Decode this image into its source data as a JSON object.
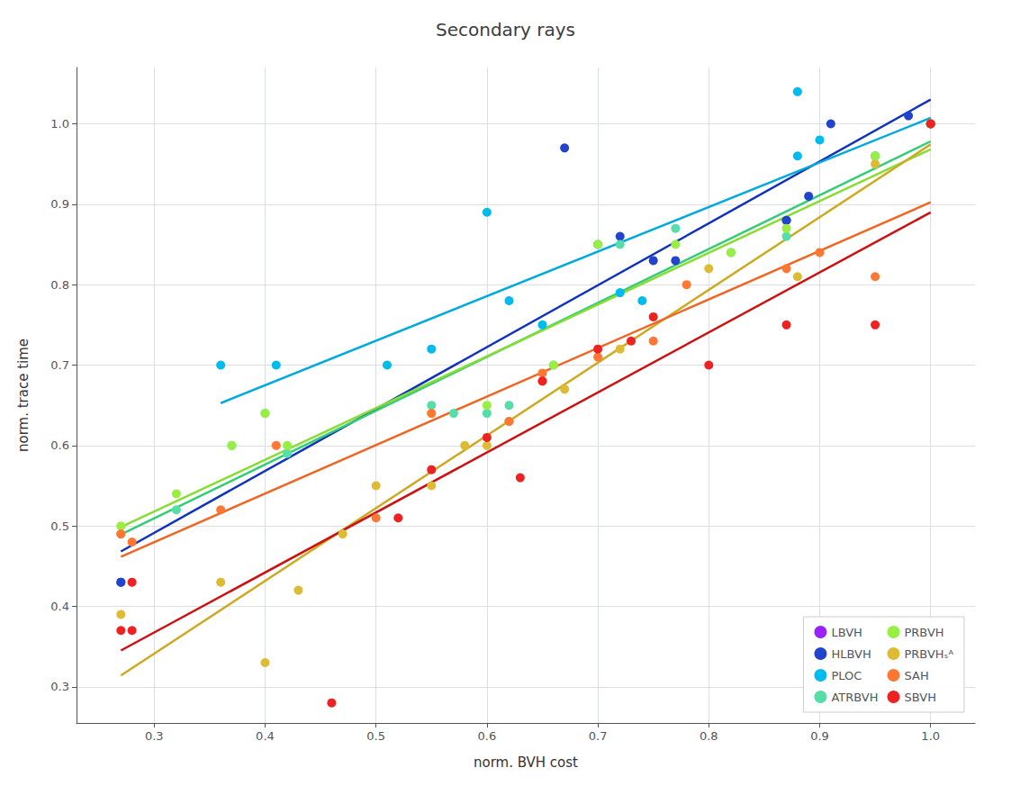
{
  "chart_data": {
    "type": "scatter",
    "title": "Secondary rays",
    "xlabel": "norm. BVH cost",
    "ylabel": "norm. trace time",
    "xlim": [
      0.23,
      1.04
    ],
    "ylim": [
      0.255,
      1.07
    ],
    "xticks": [
      0.3,
      0.4,
      0.5,
      0.6,
      0.7,
      0.8,
      0.9,
      {
        "value": 1.0,
        "label": "1.0"
      }
    ],
    "yticks": [
      0.3,
      0.4,
      0.5,
      0.6,
      0.7,
      0.8,
      0.9,
      {
        "value": 1.0,
        "label": "1.0"
      }
    ],
    "grid": true,
    "legend": "lower right",
    "series": [
      {
        "name": "LBVH",
        "type": "scatter",
        "color": "#9922FF",
        "x": [
          1.0
        ],
        "values": [
          1.0
        ]
      },
      {
        "name": "HLBVH",
        "type": "scatter",
        "color": "#2244CC",
        "x": [
          0.27,
          0.27,
          0.67,
          0.72,
          0.75,
          0.77,
          0.87,
          0.87,
          0.89,
          0.91,
          0.98,
          1.0
        ],
        "values": [
          0.43,
          0.43,
          0.97,
          0.86,
          0.83,
          0.83,
          0.88,
          0.88,
          0.91,
          1.0,
          1.01,
          1.0
        ]
      },
      {
        "name": "PLOC",
        "type": "scatter",
        "color": "#00BBEE",
        "x": [
          0.36,
          0.41,
          0.51,
          0.55,
          0.6,
          0.62,
          0.65,
          0.7,
          0.72,
          0.74,
          0.88,
          0.88,
          0.9,
          0.95,
          1.0
        ],
        "values": [
          0.7,
          0.7,
          0.7,
          0.72,
          0.89,
          0.78,
          0.75,
          0.85,
          0.79,
          0.78,
          0.96,
          1.04,
          0.98,
          0.96,
          1.0
        ]
      },
      {
        "name": "ATRBVH",
        "type": "scatter",
        "color": "#55DDAA",
        "x": [
          0.27,
          0.32,
          0.37,
          0.4,
          0.42,
          0.55,
          0.57,
          0.6,
          0.62,
          0.66,
          0.7,
          0.72,
          0.77,
          0.82,
          0.87,
          0.95,
          1.0
        ],
        "values": [
          0.49,
          0.52,
          0.6,
          0.64,
          0.59,
          0.65,
          0.64,
          0.64,
          0.65,
          0.7,
          0.85,
          0.85,
          0.87,
          0.84,
          0.86,
          0.96,
          1.0
        ]
      },
      {
        "name": "PRBVH",
        "type": "scatter",
        "color": "#99EE44",
        "x": [
          0.27,
          0.32,
          0.37,
          0.4,
          0.42,
          0.55,
          0.6,
          0.62,
          0.66,
          0.7,
          0.77,
          0.82,
          0.87,
          0.95,
          1.0
        ],
        "values": [
          0.5,
          0.54,
          0.6,
          0.64,
          0.6,
          0.64,
          0.65,
          0.63,
          0.7,
          0.85,
          0.85,
          0.84,
          0.87,
          0.96,
          1.0
        ]
      },
      {
        "name": "PRBVHₛᴬ",
        "type": "scatter",
        "color": "#DDBB33",
        "x": [
          0.27,
          0.36,
          0.4,
          0.43,
          0.47,
          0.5,
          0.55,
          0.58,
          0.6,
          0.62,
          0.65,
          0.67,
          0.72,
          0.8,
          0.88,
          0.95,
          1.0
        ],
        "values": [
          0.39,
          0.43,
          0.33,
          0.42,
          0.49,
          0.55,
          0.55,
          0.6,
          0.6,
          0.63,
          0.68,
          0.67,
          0.72,
          0.82,
          0.81,
          0.95,
          1.0
        ]
      },
      {
        "name": "SAH",
        "type": "scatter",
        "color": "#FF7733",
        "x": [
          0.27,
          0.28,
          0.36,
          0.41,
          0.5,
          0.55,
          0.62,
          0.65,
          0.7,
          0.75,
          0.78,
          0.87,
          0.9,
          0.95,
          1.0
        ],
        "values": [
          0.49,
          0.48,
          0.52,
          0.6,
          0.51,
          0.64,
          0.63,
          0.69,
          0.71,
          0.73,
          0.8,
          0.82,
          0.84,
          0.81,
          1.0
        ]
      },
      {
        "name": "SBVH",
        "type": "scatter",
        "color": "#EE2222",
        "x": [
          0.27,
          0.28,
          0.28,
          0.46,
          0.52,
          0.55,
          0.6,
          0.63,
          0.65,
          0.7,
          0.73,
          0.75,
          0.8,
          0.87,
          0.95,
          1.0
        ],
        "values": [
          0.37,
          0.37,
          0.43,
          0.28,
          0.51,
          0.57,
          0.61,
          0.56,
          0.68,
          0.72,
          0.73,
          0.76,
          0.7,
          0.75,
          0.75,
          1.0
        ]
      },
      {
        "name": "HLBVH",
        "type": "line",
        "color": "#1133BB",
        "x": [
          0.27,
          1.0
        ],
        "values": [
          0.4683,
          1.0302
        ]
      },
      {
        "name": "PLOC",
        "type": "line",
        "color": "#00AADD",
        "x": [
          0.36,
          1.0
        ],
        "values": [
          0.6527,
          1.0074
        ]
      },
      {
        "name": "ATRBVH",
        "type": "line",
        "color": "#33CC77",
        "x": [
          0.27,
          1.0
        ],
        "values": [
          0.4893,
          0.9782
        ]
      },
      {
        "name": "PRBVH",
        "type": "line",
        "color": "#88DD33",
        "x": [
          0.27,
          1.0
        ],
        "values": [
          0.4986,
          0.9683
        ]
      },
      {
        "name": "PRBVHₛᴬ",
        "type": "line",
        "color": "#CCAA22",
        "x": [
          0.27,
          1.0
        ],
        "values": [
          0.3141,
          0.9744
        ]
      },
      {
        "name": "SAH",
        "type": "line",
        "color": "#EE6622",
        "x": [
          0.27,
          1.0
        ],
        "values": [
          0.4617,
          0.9024
        ]
      },
      {
        "name": "SBVH",
        "type": "line",
        "color": "#CC1111",
        "x": [
          0.27,
          1.0
        ],
        "values": [
          0.3451,
          0.8899
        ]
      }
    ]
  }
}
